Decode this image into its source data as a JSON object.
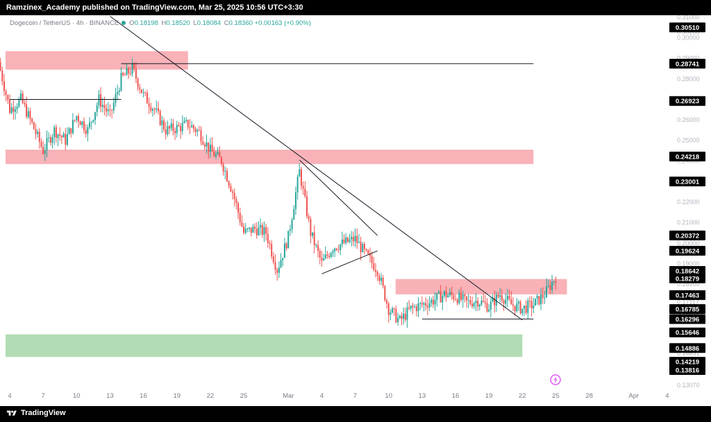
{
  "header": {
    "publisher_line": "Ramzinex_Academy published on TradingView.com, Mar 25, 2025 10:56 UTC+3:30"
  },
  "legend": {
    "symbol": "Dogecoin / TetherUS · 4h · BINANCE",
    "open_label": "O",
    "open": "0.18198",
    "high_label": "H",
    "high": "0.18520",
    "low_label": "L",
    "low": "0.18084",
    "close_label": "C",
    "close": "0.18360",
    "change": "+0.00163 (+0.90%)",
    "status_color": "#26a69a"
  },
  "footer": {
    "brand": "TradingView"
  },
  "colors": {
    "up": "#26a69a",
    "down": "#ef5350",
    "resistance_zone": "#f7a4ab",
    "support_zone": "#a5d6a7",
    "trendline": "#131722",
    "tag_bg": "#000000"
  },
  "price_axis": {
    "scale": "linear",
    "min": 0.127,
    "max": 0.311,
    "tick_labels": [
      "0.31000",
      "0.30280",
      "0.30000",
      "0.29000",
      "0.28000",
      "0.27000",
      "0.26000",
      "0.25000",
      "0.24000",
      "0.23000",
      "0.22000",
      "0.21000",
      "0.20000",
      "0.19000",
      "0.18000",
      "0.17117",
      "0.16538",
      "0.14631",
      "0.14090",
      "0.13070"
    ],
    "tags": [
      "0.30510",
      "0.28741",
      "0.26923",
      "0.24218",
      "0.23001",
      "0.20372",
      "0.19624",
      "0.18642",
      "0.18279",
      "0.17463",
      "0.16785",
      "0.16296",
      "0.15646",
      "0.14886",
      "0.14219",
      "0.13816"
    ]
  },
  "time_axis": {
    "labels": [
      "4",
      "7",
      "10",
      "13",
      "16",
      "19",
      "22",
      "25",
      "Mar",
      "4",
      "7",
      "10",
      "13",
      "16",
      "19",
      "22",
      "25",
      "28",
      "Apr",
      "4"
    ]
  },
  "chart_data": {
    "type": "candlestick",
    "title": "Dogecoin / TetherUS · 4h · BINANCE",
    "xlabel": "",
    "ylabel": "",
    "y_range": [
      0.127,
      0.311
    ],
    "grid": false,
    "price_path": [
      {
        "date": "Feb 3",
        "price": 0.288
      },
      {
        "date": "Feb 4",
        "price": 0.265
      },
      {
        "date": "Feb 5",
        "price": 0.27
      },
      {
        "date": "Feb 6",
        "price": 0.258
      },
      {
        "date": "Feb 7",
        "price": 0.245
      },
      {
        "date": "Feb 8",
        "price": 0.255
      },
      {
        "date": "Feb 9",
        "price": 0.25
      },
      {
        "date": "Feb 10",
        "price": 0.262
      },
      {
        "date": "Feb 11",
        "price": 0.255
      },
      {
        "date": "Feb 12",
        "price": 0.27
      },
      {
        "date": "Feb 13",
        "price": 0.262
      },
      {
        "date": "Feb 14",
        "price": 0.28
      },
      {
        "date": "Feb 15",
        "price": 0.285
      },
      {
        "date": "Feb 16",
        "price": 0.272
      },
      {
        "date": "Feb 17",
        "price": 0.265
      },
      {
        "date": "Feb 18",
        "price": 0.255
      },
      {
        "date": "Feb 19",
        "price": 0.256
      },
      {
        "date": "Feb 20",
        "price": 0.258
      },
      {
        "date": "Feb 21",
        "price": 0.254
      },
      {
        "date": "Feb 22",
        "price": 0.245
      },
      {
        "date": "Feb 23",
        "price": 0.24
      },
      {
        "date": "Feb 24",
        "price": 0.225
      },
      {
        "date": "Feb 25",
        "price": 0.205
      },
      {
        "date": "Feb 26",
        "price": 0.207
      },
      {
        "date": "Feb 27",
        "price": 0.205
      },
      {
        "date": "Feb 28",
        "price": 0.187
      },
      {
        "date": "Mar 1",
        "price": 0.203
      },
      {
        "date": "Mar 2",
        "price": 0.235
      },
      {
        "date": "Mar 3",
        "price": 0.205
      },
      {
        "date": "Mar 4",
        "price": 0.19
      },
      {
        "date": "Mar 5",
        "price": 0.198
      },
      {
        "date": "Mar 6",
        "price": 0.2
      },
      {
        "date": "Mar 7",
        "price": 0.202
      },
      {
        "date": "Mar 8",
        "price": 0.194
      },
      {
        "date": "Mar 9",
        "price": 0.187
      },
      {
        "date": "Mar 10",
        "price": 0.168
      },
      {
        "date": "Mar 11",
        "price": 0.162
      },
      {
        "date": "Mar 12",
        "price": 0.168
      },
      {
        "date": "Mar 13",
        "price": 0.17
      },
      {
        "date": "Mar 14",
        "price": 0.172
      },
      {
        "date": "Mar 15",
        "price": 0.175
      },
      {
        "date": "Mar 16",
        "price": 0.174
      },
      {
        "date": "Mar 17",
        "price": 0.171
      },
      {
        "date": "Mar 18",
        "price": 0.172
      },
      {
        "date": "Mar 19",
        "price": 0.169
      },
      {
        "date": "Mar 20",
        "price": 0.175
      },
      {
        "date": "Mar 21",
        "price": 0.17
      },
      {
        "date": "Mar 22",
        "price": 0.168
      },
      {
        "date": "Mar 23",
        "price": 0.17
      },
      {
        "date": "Mar 24",
        "price": 0.175
      },
      {
        "date": "Mar 25",
        "price": 0.1836
      }
    ],
    "zones": [
      {
        "kind": "resistance",
        "from": "Feb 3",
        "to": "Feb 20",
        "top": 0.2935,
        "bottom": 0.2845
      },
      {
        "kind": "resistance",
        "from": "Feb 3",
        "to": "Mar 23",
        "top": 0.2455,
        "bottom": 0.2385
      },
      {
        "kind": "resistance",
        "from": "Mar 11",
        "to": "Mar 26",
        "top": 0.1825,
        "bottom": 0.175
      },
      {
        "kind": "support",
        "from": "Feb 3",
        "to": "Mar 22",
        "top": 0.1555,
        "bottom": 0.1445
      }
    ],
    "lines": [
      {
        "from": {
          "date": "Feb 13",
          "price": 0.3105
        },
        "to": {
          "date": "Mar 22",
          "price": 0.1625
        }
      },
      {
        "from": {
          "date": "Mar 2",
          "price": 0.2405
        },
        "to": {
          "date": "Mar 9",
          "price": 0.2037
        }
      },
      {
        "from": {
          "date": "Mar 4",
          "price": 0.185
        },
        "to": {
          "date": "Mar 9",
          "price": 0.1962
        }
      },
      {
        "from": {
          "date": "Mar 13",
          "price": 0.163
        },
        "to": {
          "date": "Mar 23",
          "price": 0.163
        }
      },
      {
        "from": {
          "date": "Feb 4",
          "price": 0.27
        },
        "to": {
          "date": "Feb 14",
          "price": 0.27
        }
      },
      {
        "from": {
          "date": "Feb 14",
          "price": 0.2874
        },
        "to": {
          "date": "Mar 23",
          "price": 0.2874
        }
      }
    ]
  }
}
